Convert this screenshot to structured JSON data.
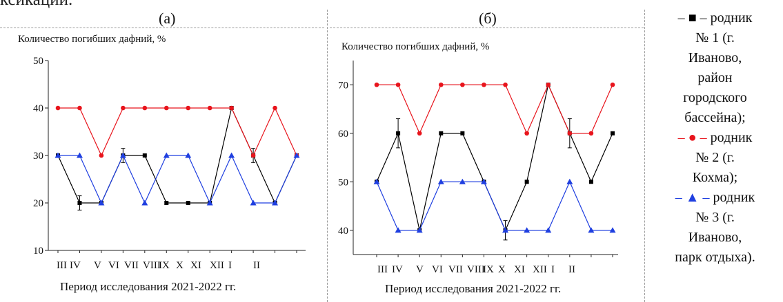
{
  "page": {
    "clipped_top_text": "ксикации."
  },
  "panels": [
    {
      "label": "(а)",
      "ylabel": "Количество погибших дафний, %",
      "xlabel": "Период исследования 2021-2022 гг."
    },
    {
      "label": "(б)",
      "ylabel": "Количество погибших дафний, %",
      "xlabel": "Период исследования 2021-2022 гг."
    }
  ],
  "legend": {
    "items": [
      {
        "key": "– ■ –",
        "color": "#000000",
        "lines": [
          "родник",
          "№ 1 (г.",
          "Иваново,",
          "район",
          "городского",
          "бассейна);"
        ]
      },
      {
        "key": "– ● –",
        "color": "#e8141c",
        "lines": [
          "родник",
          "№ 2 (г.",
          "Кохма);"
        ]
      },
      {
        "key": "– ▲ –",
        "color": "#1f3fe0",
        "lines": [
          "родник",
          "№ 3 (г.",
          "Иваново,",
          "парк отдыха)."
        ]
      }
    ]
  },
  "chart_data": [
    {
      "type": "line",
      "panel": "(а)",
      "ylabel": "Количество погибших дафний, %",
      "xlabel": "Период исследования 2021-2022 гг.",
      "ylim": [
        10,
        50
      ],
      "yticks": [
        10,
        20,
        30,
        40,
        50
      ],
      "xtick_labels": [
        "III",
        "IV",
        "V",
        "VI",
        "VII",
        "VIII",
        "IX",
        "X",
        "XI",
        "XII",
        "I",
        "II"
      ],
      "grid": false,
      "series": [
        {
          "name": "родник № 1",
          "marker": "square",
          "color": "#000000",
          "x": [
            1,
            2,
            3,
            4,
            5,
            6,
            7,
            8,
            9,
            10,
            11,
            12
          ],
          "values": [
            30,
            20,
            20,
            30,
            30,
            20,
            20,
            20,
            40,
            30,
            20,
            30
          ],
          "error": [
            0,
            1.5,
            0,
            1.5,
            0,
            0,
            0,
            0,
            0,
            1.5,
            0,
            0
          ]
        },
        {
          "name": "родник № 2",
          "marker": "circle",
          "color": "#e8141c",
          "x": [
            1,
            2,
            3,
            4,
            5,
            6,
            7,
            8,
            9,
            10,
            11,
            12
          ],
          "values": [
            40,
            40,
            30,
            40,
            40,
            40,
            40,
            40,
            40,
            30,
            40,
            30
          ]
        },
        {
          "name": "родник № 3",
          "marker": "triangle",
          "color": "#1f3fe0",
          "x": [
            1,
            2,
            3,
            4,
            5,
            6,
            7,
            8,
            9,
            10,
            11,
            12
          ],
          "values": [
            30,
            30,
            20,
            30,
            20,
            30,
            30,
            20,
            30,
            20,
            20,
            30
          ]
        }
      ]
    },
    {
      "type": "line",
      "panel": "(б)",
      "ylabel": "Количество погибших дафний, %",
      "xlabel": "Период исследования 2021-2022 гг.",
      "ylim": [
        35,
        75
      ],
      "yticks": [
        40,
        50,
        60,
        70
      ],
      "xtick_labels": [
        "III",
        "IV",
        "V",
        "VI",
        "VII",
        "VIII",
        "IX",
        "X",
        "XI",
        "XII",
        "I",
        "II"
      ],
      "grid": false,
      "series": [
        {
          "name": "родник № 1",
          "marker": "square",
          "color": "#000000",
          "x": [
            1,
            2,
            3,
            4,
            5,
            6,
            7,
            8,
            9,
            10,
            11,
            12
          ],
          "values": [
            50,
            60,
            40,
            60,
            60,
            50,
            40,
            50,
            70,
            60,
            50,
            60
          ],
          "error": [
            0,
            3,
            0,
            0,
            0,
            0,
            2,
            0,
            0,
            3,
            0,
            0
          ]
        },
        {
          "name": "родник № 2",
          "marker": "circle",
          "color": "#e8141c",
          "x": [
            1,
            2,
            3,
            4,
            5,
            6,
            7,
            8,
            9,
            10,
            11,
            12
          ],
          "values": [
            70,
            70,
            60,
            70,
            70,
            70,
            70,
            60,
            70,
            60,
            60,
            70
          ]
        },
        {
          "name": "родник № 3",
          "marker": "triangle",
          "color": "#1f3fe0",
          "x": [
            1,
            2,
            3,
            4,
            5,
            6,
            7,
            8,
            9,
            10,
            11,
            12
          ],
          "values": [
            50,
            40,
            40,
            50,
            50,
            50,
            40,
            40,
            40,
            50,
            40,
            40
          ]
        }
      ]
    }
  ]
}
